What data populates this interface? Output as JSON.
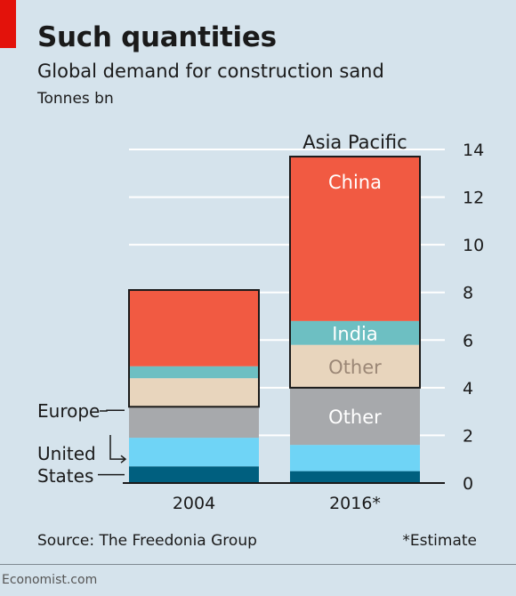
{
  "header": {
    "title": "Such quantities",
    "subtitle": "Global demand for construction sand",
    "unit": "Tonnes bn"
  },
  "footer": {
    "source": "Source: The Freedonia Group",
    "footnote": "*Estimate",
    "brand": "Economist.com"
  },
  "colors": {
    "background": "#d5e3ec",
    "accent_red": "#e3120b",
    "china": "#f15a42",
    "india": "#6dbfc2",
    "asia_other": "#e8d5bd",
    "europe": "#a7a9ac",
    "united_states": "#6fd4f6",
    "rest_of_world": "#005f7f"
  },
  "chart_data": {
    "type": "bar",
    "stacked": true,
    "categories": [
      "2004",
      "2016*"
    ],
    "ylim": [
      0,
      14
    ],
    "yticks": [
      0,
      2,
      4,
      6,
      8,
      10,
      12,
      14
    ],
    "ytick_labels": [
      "0",
      "2",
      "4",
      "6",
      "8",
      "10",
      "12",
      "14"
    ],
    "axis_position": "right",
    "grid": true,
    "series": [
      {
        "key": "rest",
        "label": "",
        "values": [
          0.7,
          0.5
        ],
        "color": "#005f7f"
      },
      {
        "key": "united_states",
        "label": "United States",
        "values": [
          1.2,
          1.1
        ],
        "color": "#6fd4f6"
      },
      {
        "key": "europe",
        "label": "Europe",
        "values": [
          1.3,
          2.4
        ],
        "color": "#a7a9ac"
      },
      {
        "key": "asia_other",
        "label": "Other",
        "values": [
          1.2,
          1.8
        ],
        "color": "#e8d5bd"
      },
      {
        "key": "india",
        "label": "India",
        "values": [
          0.5,
          1.0
        ],
        "color": "#6dbfc2"
      },
      {
        "key": "china",
        "label": "China",
        "values": [
          3.2,
          6.9
        ],
        "color": "#f15a42"
      }
    ],
    "group_outline": {
      "label": "Asia Pacific",
      "series_keys": [
        "asia_other",
        "india",
        "china"
      ]
    },
    "in_bar_labels": [
      {
        "text": "China",
        "category": 1,
        "series": "china",
        "color": "#ffffff"
      },
      {
        "text": "India",
        "category": 1,
        "series": "india",
        "color": "#ffffff"
      },
      {
        "text": "Other",
        "category": 1,
        "series": "asia_other",
        "color": "#9b8776"
      },
      {
        "text": "Other",
        "category": 1,
        "series": "europe",
        "color": "#ffffff"
      }
    ],
    "left_labels": [
      {
        "lines": [
          "Europe"
        ],
        "series": "europe"
      },
      {
        "lines": [
          "United",
          "States"
        ],
        "series": "united_states"
      }
    ],
    "group_label": "Asia Pacific"
  }
}
